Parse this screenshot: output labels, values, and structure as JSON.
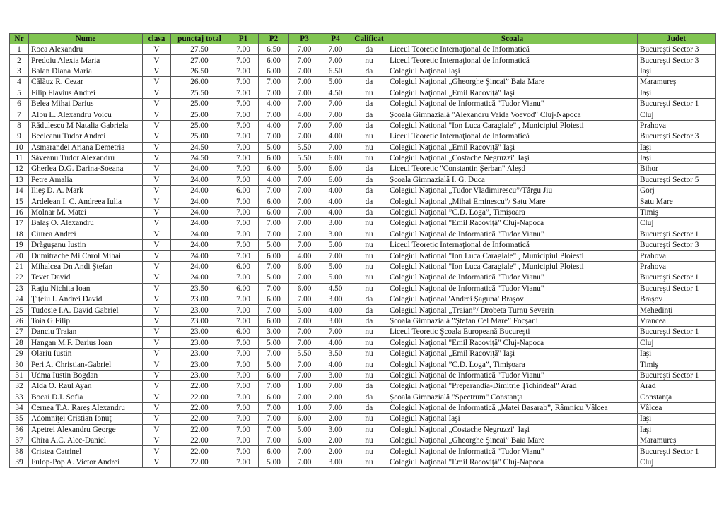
{
  "header": {
    "colors": {
      "header_bg": "#80c451"
    },
    "columns": [
      "Nr",
      "Nume",
      "clasa",
      "punctaj total",
      "P1",
      "P2",
      "P3",
      "P4",
      "Calificat",
      "Scoala",
      "Judet"
    ]
  },
  "rows": [
    [
      "1",
      "Roca Alexandru",
      "V",
      "27.50",
      "7.00",
      "6.50",
      "7.00",
      "7.00",
      "da",
      "Liceul Teoretic Internaţional de Informatică",
      "Bucureşti Sector 3"
    ],
    [
      "2",
      "Predoiu Alexia Maria",
      "V",
      "27.00",
      "7.00",
      "6.00",
      "7.00",
      "7.00",
      "nu",
      "Liceul Teoretic Internaţional de Informatică",
      "Bucureşti Sector 3"
    ],
    [
      "3",
      "Balan Diana Maria",
      "V",
      "26.50",
      "7.00",
      "6.00",
      "7.00",
      "6.50",
      "da",
      "Colegiul Naţional Iaşi",
      "Iaşi"
    ],
    [
      "4",
      "Călăuz R. Cezar",
      "V",
      "26.00",
      "7.00",
      "7.00",
      "7.00",
      "5.00",
      "da",
      "Colegiul Naţional „Gheorghe Şincai” Baia Mare",
      "Maramureş"
    ],
    [
      "5",
      "Filip Flavius Andrei",
      "V",
      "25.50",
      "7.00",
      "7.00",
      "7.00",
      "4.50",
      "nu",
      "Colegiul Naţional „Emil Racoviţă\" Iaşi",
      "Iaşi"
    ],
    [
      "6",
      "Belea Mihai Darius",
      "V",
      "25.00",
      "7.00",
      "4.00",
      "7.00",
      "7.00",
      "da",
      "Colegiul Naţional de Informatică \"Tudor Vianu\"",
      "Bucureşti Sector 1"
    ],
    [
      "7",
      "Albu L. Alexandru Voicu",
      "V",
      "25.00",
      "7.00",
      "7.00",
      "4.00",
      "7.00",
      "da",
      "Şcoala Gimnazială \"Alexandru Vaida Voevod\" Cluj-Napoca",
      "Cluj"
    ],
    [
      "8",
      "Rădulescu M Natalia Gabriela",
      "V",
      "25.00",
      "7.00",
      "4.00",
      "7.00",
      "7.00",
      "da",
      "Colegiul National \"Ion Luca Caragiale\" , Municipiul Ploiesti",
      "Prahova"
    ],
    [
      "9",
      "Becleanu Tudor Andrei",
      "V",
      "25.00",
      "7.00",
      "7.00",
      "7.00",
      "4.00",
      "nu",
      "Liceul Teoretic Internaţional de Informatică",
      "Bucureşti Sector 3"
    ],
    [
      "10",
      "Asmarandei Ariana Demetria",
      "V",
      "24.50",
      "7.00",
      "5.00",
      "5.50",
      "7.00",
      "nu",
      "Colegiul Naţional „Emil Racoviţă\" Iaşi",
      "Iaşi"
    ],
    [
      "11",
      "Săveanu Tudor Alexandru",
      "V",
      "24.50",
      "7.00",
      "6.00",
      "5.50",
      "6.00",
      "nu",
      "Colegiul Naţional „Costache Negruzzi\" Iaşi",
      "Iaşi"
    ],
    [
      "12",
      "Gherlea D.G. Darina-Soeana",
      "V",
      "24.00",
      "7.00",
      "6.00",
      "5.00",
      "6.00",
      "da",
      "Liceul Teoretic \"Constantin Şerban\" Aleşd",
      "Bihor"
    ],
    [
      "13",
      "Petre Amalia",
      "V",
      "24.00",
      "7.00",
      "4.00",
      "7.00",
      "6.00",
      "da",
      "Şcoala Gimnazială I. G. Duca",
      "Bucureşti Sector 5"
    ],
    [
      "14",
      "Ilieş D. A. Mark",
      "V",
      "24.00",
      "6.00",
      "7.00",
      "7.00",
      "4.00",
      "da",
      "Colegiul Naţional „Tudor Vladimirescu”/Târgu Jiu",
      "Gorj"
    ],
    [
      "15",
      "Ardelean I. C. Andreea Iulia",
      "V",
      "24.00",
      "7.00",
      "6.00",
      "7.00",
      "4.00",
      "da",
      "Colegiul Naţional „Mihai Eminescu”/ Satu Mare",
      "Satu Mare"
    ],
    [
      "16",
      "Molnar M. Matei",
      "V",
      "24.00",
      "7.00",
      "6.00",
      "7.00",
      "4.00",
      "da",
      "Colegiul Naţional ”C.D. Loga”, Timişoara",
      "Timiş"
    ],
    [
      "17",
      "Balaş O. Alexandru",
      "V",
      "24.00",
      "7.00",
      "7.00",
      "7.00",
      "3.00",
      "nu",
      "Colegiul Naţional \"Emil Racoviţă\" Cluj-Napoca",
      "Cluj"
    ],
    [
      "18",
      "Ciurea Andrei",
      "V",
      "24.00",
      "7.00",
      "7.00",
      "7.00",
      "3.00",
      "nu",
      "Colegiul Naţional de Informatică \"Tudor Vianu\"",
      "Bucureşti Sector 1"
    ],
    [
      "19",
      "Drăguşanu Iustin",
      "V",
      "24.00",
      "7.00",
      "5.00",
      "7.00",
      "5.00",
      "nu",
      "Liceul Teoretic Internaţional de Informatică",
      "Bucureşti Sector 3"
    ],
    [
      "20",
      "Dumitrache Mi Carol Mihai",
      "V",
      "24.00",
      "7.00",
      "6.00",
      "4.00",
      "7.00",
      "nu",
      "Colegiul National \"Ion Luca Caragiale\" , Municipiul Ploiesti",
      "Prahova"
    ],
    [
      "21",
      "Mihalcea Dn Andi Ştefan",
      "V",
      "24.00",
      "6.00",
      "7.00",
      "6.00",
      "5.00",
      "nu",
      "Colegiul National \"Ion Luca Caragiale\" , Municipiul Ploiesti",
      "Prahova"
    ],
    [
      "22",
      "Tevet David",
      "V",
      "24.00",
      "7.00",
      "5.00",
      "7.00",
      "5.00",
      "nu",
      "Colegiul Naţional de Informatică \"Tudor Vianu\"",
      "Bucureşti Sector 1"
    ],
    [
      "23",
      "Raţiu Nichita Ioan",
      "V",
      "23.50",
      "6.00",
      "7.00",
      "6.00",
      "4.50",
      "nu",
      "Colegiul Naţional de Informatică \"Tudor Vianu\"",
      "Bucureşti Sector 1"
    ],
    [
      "24",
      "Ţiţeiu I. Andrei David",
      "V",
      "23.00",
      "7.00",
      "6.00",
      "7.00",
      "3.00",
      "da",
      "Colegiul Naţional 'Andrei Şaguna' Braşov",
      "Braşov"
    ],
    [
      "25",
      "Tudosie I.A. David Gabriel",
      "V",
      "23.00",
      "7.00",
      "7.00",
      "5.00",
      "4.00",
      "da",
      "Colegiul Naţional „Traian”/ Drobeta Turnu Severin",
      "Mehedinţi"
    ],
    [
      "26",
      "Toia G Filip",
      "V",
      "23.00",
      "7.00",
      "6.00",
      "7.00",
      "3.00",
      "da",
      "Şcoala Gimnazială ”Ştefan Cel Mare” Focşani",
      "Vrancea"
    ],
    [
      "27",
      "Danciu Traian",
      "V",
      "23.00",
      "6.00",
      "3.00",
      "7.00",
      "7.00",
      "nu",
      "Liceul Teoretic Şcoala Europeană Bucureşti",
      "Bucureşti Sector 1"
    ],
    [
      "28",
      "Hangan M.F. Darius Ioan",
      "V",
      "23.00",
      "7.00",
      "5.00",
      "7.00",
      "4.00",
      "nu",
      "Colegiul Naţional \"Emil Racoviţă\" Cluj-Napoca",
      "Cluj"
    ],
    [
      "29",
      "Olariu Iustin",
      "V",
      "23.00",
      "7.00",
      "7.00",
      "5.50",
      "3.50",
      "nu",
      "Colegiul Naţional „Emil Racoviţă\" Iaşi",
      "Iaşi"
    ],
    [
      "30",
      "Peri A. Christian-Gabriel",
      "V",
      "23.00",
      "7.00",
      "5.00",
      "7.00",
      "4.00",
      "nu",
      "Colegiul Naţional ”C.D. Loga”, Timişoara",
      "Timiş"
    ],
    [
      "31",
      "Udma Iustin Bogdan",
      "V",
      "23.00",
      "7.00",
      "6.00",
      "7.00",
      "3.00",
      "nu",
      "Colegiul Naţional de Informatică \"Tudor Vianu\"",
      "Bucureşti Sector 1"
    ],
    [
      "32",
      "Alda O. Raul Ayan",
      "V",
      "22.00",
      "7.00",
      "7.00",
      "1.00",
      "7.00",
      "da",
      "Colegiul Naţional \"Preparandia-Dimitrie Ţichindeal\" Arad",
      "Arad"
    ],
    [
      "33",
      "Bocai D.I. Sofia",
      "V",
      "22.00",
      "7.00",
      "6.00",
      "7.00",
      "2.00",
      "da",
      "Şcoala Gimnazială \"Spectrum\" Constanţa",
      "Constanţa"
    ],
    [
      "34",
      "Cernea T.A. Rareş Alexandru",
      "V",
      "22.00",
      "7.00",
      "7.00",
      "1.00",
      "7.00",
      "da",
      "Colegiul Naţional de Informatică „Matei Basarab”, Râmnicu Vâlcea",
      "Vâlcea"
    ],
    [
      "35",
      "Adomniţei Cristian Ionuţ",
      "V",
      "22.00",
      "7.00",
      "7.00",
      "6.00",
      "2.00",
      "nu",
      "Colegiul Naţional Iaşi",
      "Iaşi"
    ],
    [
      "36",
      "Apetrei Alexandru George",
      "V",
      "22.00",
      "7.00",
      "7.00",
      "5.00",
      "3.00",
      "nu",
      "Colegiul Naţional „Costache Negruzzi\" Iaşi",
      "Iaşi"
    ],
    [
      "37",
      "Chira A.C. Alec-Daniel",
      "V",
      "22.00",
      "7.00",
      "7.00",
      "6.00",
      "2.00",
      "nu",
      "Colegiul Naţional „Gheorghe Şincai” Baia Mare",
      "Maramureş"
    ],
    [
      "38",
      "Cristea Catrinel",
      "V",
      "22.00",
      "7.00",
      "6.00",
      "7.00",
      "2.00",
      "nu",
      "Colegiul Naţional de Informatică \"Tudor Vianu\"",
      "Bucureşti Sector 1"
    ],
    [
      "39",
      "Fulop-Pop A. Victor Andrei",
      "V",
      "22.00",
      "7.00",
      "5.00",
      "7.00",
      "3.00",
      "nu",
      "Colegiul Naţional \"Emil Racoviţă\" Cluj-Napoca",
      "Cluj"
    ]
  ]
}
